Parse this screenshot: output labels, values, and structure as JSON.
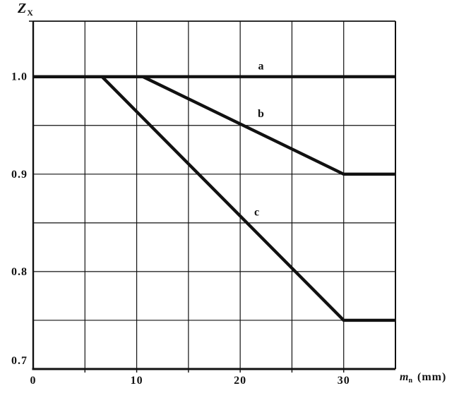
{
  "figure": {
    "background_color": "#ffffff",
    "ink_color": "#121212"
  },
  "chart_data": {
    "type": "line",
    "title": "",
    "ylabel": {
      "variable": "Z",
      "subscript": "X"
    },
    "xlabel": {
      "variable": "m",
      "subscript": "n",
      "unit": "(mm)"
    },
    "xlim": [
      0,
      35
    ],
    "ylim": [
      0.7,
      1.057
    ],
    "grid": true,
    "x_gridlines": [
      5,
      10,
      15,
      20,
      25,
      30
    ],
    "y_gridlines": [
      0.75,
      0.8,
      0.85,
      0.9,
      0.95,
      1.0
    ],
    "x_ticks": [
      {
        "value": 0,
        "label": "0"
      },
      {
        "value": 10,
        "label": "10"
      },
      {
        "value": 20,
        "label": "20"
      },
      {
        "value": 30,
        "label": "30"
      }
    ],
    "y_ticks": [
      {
        "value": 1.0,
        "label": "1.0"
      },
      {
        "value": 0.9,
        "label": "0.9"
      },
      {
        "value": 0.8,
        "label": "0.8"
      },
      {
        "value": 0.7,
        "label": "0.7"
      }
    ],
    "series": [
      {
        "name": "a",
        "label": "a",
        "points": [
          [
            0,
            1.0
          ],
          [
            35,
            1.0
          ]
        ],
        "label_pos": [
          22.0,
          1.011
        ]
      },
      {
        "name": "b",
        "label": "b",
        "points": [
          [
            0,
            1.0
          ],
          [
            10.6,
            1.0
          ],
          [
            30,
            0.9
          ],
          [
            35,
            0.9
          ]
        ],
        "label_pos": [
          22.0,
          0.962
        ]
      },
      {
        "name": "c",
        "label": "c",
        "points": [
          [
            0,
            1.0
          ],
          [
            6.65,
            1.0
          ],
          [
            30,
            0.75
          ],
          [
            35,
            0.75
          ]
        ],
        "label_pos": [
          21.6,
          0.861
        ]
      }
    ],
    "legend_position": "inline-labels",
    "line_color": "#111111"
  }
}
